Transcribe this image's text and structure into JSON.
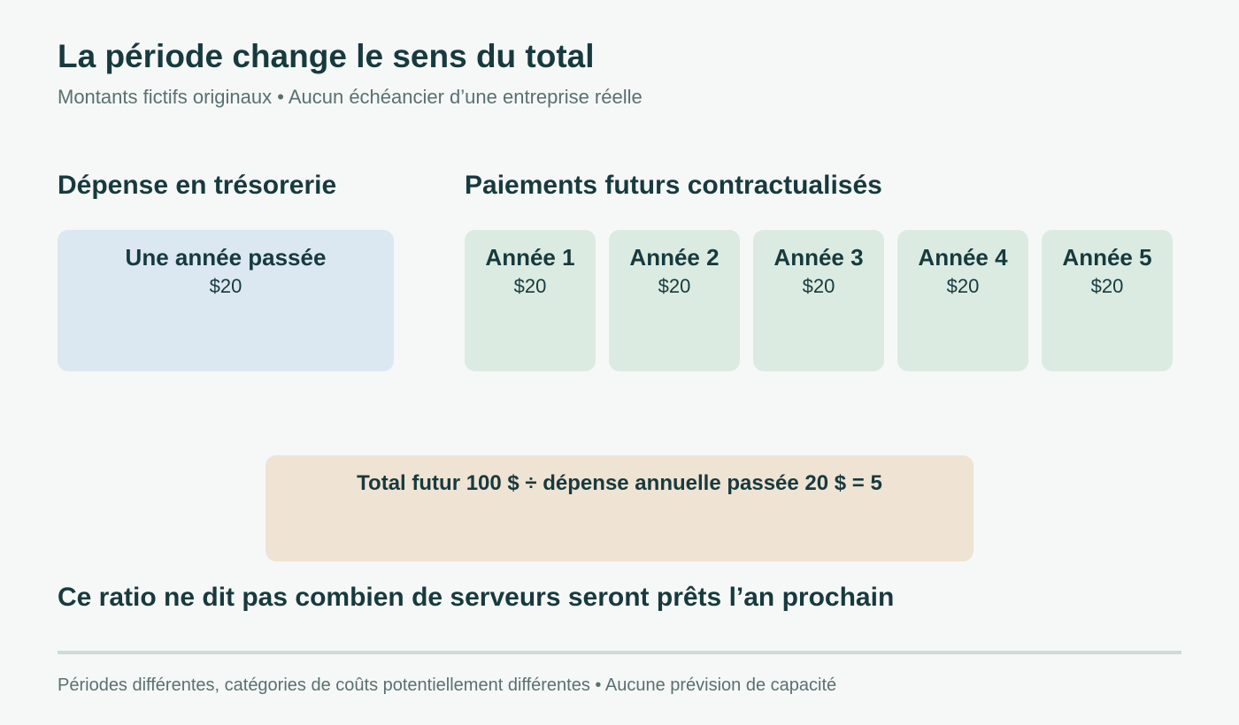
{
  "header": {
    "title": "La période change le sens du total",
    "subtitle": "Montants fictifs originaux • Aucun échéancier d’une entreprise réelle"
  },
  "cash_section": {
    "heading": "Dépense en trésorerie",
    "card": {
      "label": "Une année passée",
      "amount": "$20"
    }
  },
  "future_section": {
    "heading": "Paiements futurs contractualisés",
    "cards": [
      {
        "label": "Année 1",
        "amount": "$20"
      },
      {
        "label": "Année 2",
        "amount": "$20"
      },
      {
        "label": "Année 3",
        "amount": "$20"
      },
      {
        "label": "Année 4",
        "amount": "$20"
      },
      {
        "label": "Année 5",
        "amount": "$20"
      }
    ]
  },
  "formula": {
    "text": "Total futur 100 $ ÷ dépense annuelle passée 20 $ = 5"
  },
  "conclusion": "Ce ratio ne dit pas combien de serveurs seront prêts l’an prochain",
  "footnote": "Périodes différentes, catégories de coûts potentiellement différentes • Aucune prévision de capacité",
  "colors": {
    "text": "#173a3e",
    "muted": "#5a7070",
    "cash_card": "#dbe8f1",
    "future_card": "#dbebe2",
    "formula_box": "#efe3d3",
    "background": "#f6f8f7"
  }
}
